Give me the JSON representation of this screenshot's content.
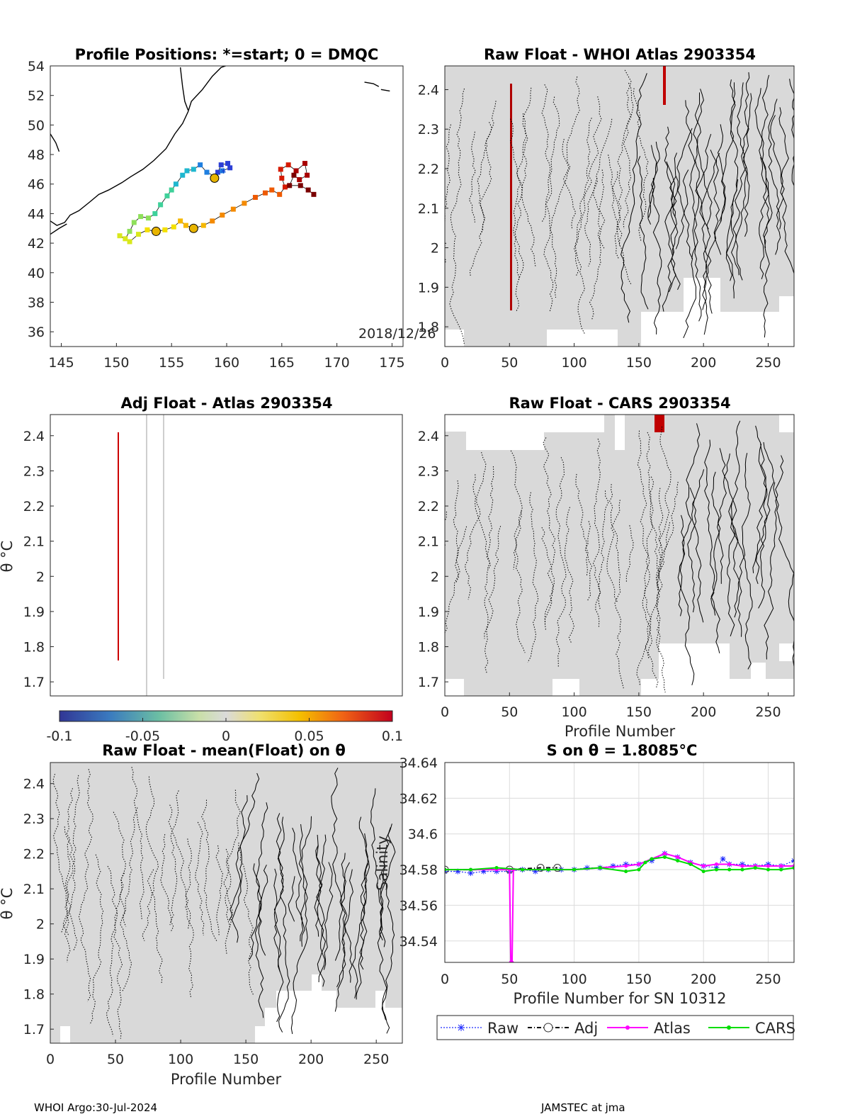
{
  "float_id": "2903354",
  "footer": {
    "left": "WHOI Argo:30-Jul-2024",
    "right": "JAMSTEC at jma"
  },
  "colors": {
    "land": "#000000",
    "grid": "#dcdcdc",
    "neutral": "#d9d9d9",
    "raw": "#1f2bff",
    "atlas": "#ff00ff",
    "cars": "#00dd00"
  },
  "chart_data": [
    {
      "id": "positions",
      "type": "scatter",
      "title": "Profile Positions: *=start; 0 = DMQC",
      "xlim": [
        144,
        176
      ],
      "ylim": [
        35,
        54
      ],
      "xticks": [
        145,
        150,
        155,
        160,
        165,
        170,
        175
      ],
      "yticks": [
        36,
        38,
        40,
        42,
        44,
        46,
        48,
        50,
        52,
        54
      ],
      "date_label": "2018/12/26",
      "track": [
        [
          159.2,
          46.8
        ],
        [
          159.5,
          47.3
        ],
        [
          160.1,
          47.4
        ],
        [
          160.3,
          47.1
        ],
        [
          159.6,
          46.9
        ],
        [
          159.0,
          46.5
        ],
        [
          158.2,
          46.8
        ],
        [
          157.6,
          47.3
        ],
        [
          157.0,
          47.0
        ],
        [
          156.4,
          46.9
        ],
        [
          156.0,
          46.6
        ],
        [
          155.4,
          46.0
        ],
        [
          155.0,
          45.6
        ],
        [
          154.6,
          45.2
        ],
        [
          154.0,
          44.6
        ],
        [
          153.5,
          44.0
        ],
        [
          152.9,
          43.7
        ],
        [
          152.2,
          43.8
        ],
        [
          151.6,
          43.4
        ],
        [
          151.2,
          42.8
        ],
        [
          150.8,
          42.3
        ],
        [
          150.3,
          42.5
        ],
        [
          151.2,
          42.1
        ],
        [
          152.0,
          42.6
        ],
        [
          152.8,
          42.9
        ],
        [
          153.6,
          42.8
        ],
        [
          154.4,
          42.9
        ],
        [
          155.2,
          43.1
        ],
        [
          155.8,
          43.5
        ],
        [
          156.3,
          43.2
        ],
        [
          157.0,
          43.0
        ],
        [
          157.9,
          43.2
        ],
        [
          158.7,
          43.5
        ],
        [
          159.6,
          43.9
        ],
        [
          160.6,
          44.3
        ],
        [
          161.6,
          44.7
        ],
        [
          162.6,
          45.1
        ],
        [
          163.5,
          45.4
        ],
        [
          164.1,
          45.6
        ],
        [
          164.8,
          45.3
        ],
        [
          165.3,
          45.8
        ],
        [
          165.0,
          46.4
        ],
        [
          164.9,
          47.0
        ],
        [
          165.6,
          47.3
        ],
        [
          166.3,
          46.9
        ],
        [
          167.1,
          47.4
        ],
        [
          167.3,
          46.6
        ],
        [
          166.6,
          46.3
        ],
        [
          166.1,
          46.6
        ],
        [
          165.7,
          45.9
        ],
        [
          166.7,
          45.9
        ],
        [
          167.4,
          45.6
        ],
        [
          167.9,
          45.3
        ]
      ],
      "dmqc_points": [
        [
          153.6,
          42.8
        ],
        [
          157.0,
          43.0
        ],
        [
          158.9,
          46.4
        ]
      ],
      "colorbar": {
        "range": [
          -0.1,
          0.1
        ],
        "ticks": [
          "-0.1",
          "-0.05",
          "0",
          "0.05",
          "0.1"
        ]
      }
    },
    {
      "id": "raw-atlas",
      "type": "heatmap",
      "title": "Raw Float - WHOI Atlas  2903354",
      "xlim": [
        0,
        270
      ],
      "ylim": [
        1.75,
        2.46
      ],
      "xticks": [
        0,
        50,
        100,
        150,
        200,
        250
      ],
      "yticks": [
        1.8,
        1.9,
        2,
        2.1,
        2.2,
        2.3,
        2.4
      ],
      "xlabel": "",
      "ylabel": ""
    },
    {
      "id": "adj-atlas",
      "type": "heatmap",
      "title": "Adj Float - Atlas  2903354",
      "xlim": [
        0,
        270
      ],
      "ylim": [
        1.66,
        2.46
      ],
      "yticks": [
        1.7,
        1.8,
        1.9,
        2,
        2.1,
        2.2,
        2.3,
        2.4
      ],
      "xticks": [],
      "ylabel": "θ °C",
      "anomaly_line": {
        "x": 52,
        "y": [
          1.76,
          2.41
        ]
      },
      "grey_lines": [
        74,
        87
      ]
    },
    {
      "id": "raw-cars",
      "type": "heatmap",
      "title": "Raw Float - CARS  2903354",
      "xlim": [
        0,
        270
      ],
      "ylim": [
        1.66,
        2.46
      ],
      "xticks": [
        0,
        50,
        100,
        150,
        200,
        250
      ],
      "yticks": [
        1.7,
        1.8,
        1.9,
        2,
        2.1,
        2.2,
        2.3,
        2.4
      ],
      "xlabel": "Profile Number"
    },
    {
      "id": "raw-mean",
      "type": "heatmap",
      "title": "Raw Float - mean(Float) on θ",
      "xlim": [
        0,
        270
      ],
      "ylim": [
        1.66,
        2.46
      ],
      "xticks": [
        0,
        50,
        100,
        150,
        200,
        250
      ],
      "yticks": [
        1.7,
        1.8,
        1.9,
        2,
        2.1,
        2.2,
        2.3,
        2.4
      ],
      "xlabel": "Profile Number",
      "ylabel": "θ °C"
    },
    {
      "id": "salinity",
      "type": "line",
      "title": "S on θ = 1.8085°C",
      "xlim": [
        0,
        270
      ],
      "ylim": [
        34.528,
        34.64
      ],
      "xticks": [
        0,
        50,
        100,
        150,
        200,
        250
      ],
      "yticks": [
        "34.54",
        "34.56",
        "34.58",
        "34.6",
        "34.62",
        "34.64"
      ],
      "xlabel": "Profile Number for SN 10312",
      "ylabel": "Salinity",
      "legend": [
        "Raw",
        "Adj",
        "Atlas",
        "CARS"
      ],
      "series": [
        {
          "name": "Raw",
          "x": [
            0,
            10,
            20,
            30,
            40,
            50,
            60,
            70,
            80,
            90,
            100,
            110,
            120,
            130,
            140,
            150,
            160,
            170,
            180,
            190,
            200,
            210,
            215,
            220,
            230,
            240,
            250,
            260,
            270
          ],
          "values": [
            34.579,
            34.579,
            34.578,
            34.579,
            34.579,
            34.579,
            34.58,
            34.579,
            34.58,
            34.58,
            34.58,
            34.581,
            34.581,
            34.582,
            34.583,
            34.583,
            34.585,
            34.589,
            34.587,
            34.584,
            34.582,
            34.581,
            34.586,
            34.583,
            34.583,
            34.582,
            34.583,
            34.582,
            34.585
          ]
        },
        {
          "name": "Adj",
          "x": [
            0,
            50,
            74,
            87
          ],
          "values": [
            34.58,
            34.58,
            34.581,
            34.581
          ]
        },
        {
          "name": "Atlas",
          "x": [
            0,
            20,
            40,
            50,
            51,
            52,
            53,
            60,
            80,
            100,
            120,
            140,
            150,
            160,
            170,
            180,
            190,
            200,
            210,
            220,
            230,
            240,
            250,
            260,
            270
          ],
          "values": [
            34.58,
            34.58,
            34.58,
            34.58,
            34.528,
            34.528,
            34.58,
            34.58,
            34.58,
            34.58,
            34.581,
            34.582,
            34.583,
            34.586,
            34.589,
            34.587,
            34.584,
            34.582,
            34.583,
            34.583,
            34.582,
            34.582,
            34.582,
            34.582,
            34.582
          ]
        },
        {
          "name": "CARS",
          "x": [
            0,
            20,
            40,
            60,
            80,
            100,
            120,
            140,
            150,
            155,
            160,
            170,
            180,
            190,
            200,
            210,
            220,
            230,
            240,
            250,
            260,
            270
          ],
          "values": [
            34.58,
            34.58,
            34.581,
            34.58,
            34.58,
            34.58,
            34.581,
            34.579,
            34.58,
            34.584,
            34.586,
            34.587,
            34.585,
            34.583,
            34.579,
            34.58,
            34.58,
            34.58,
            34.581,
            34.58,
            34.58,
            34.581
          ]
        }
      ]
    }
  ]
}
